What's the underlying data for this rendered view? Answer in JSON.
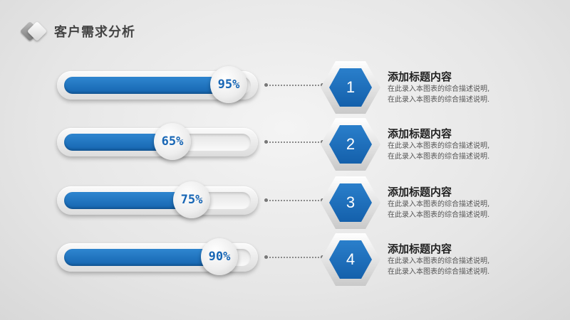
{
  "header": {
    "title": "客户需求分析"
  },
  "items": [
    {
      "percent": "95%",
      "value": 0.95,
      "number": "1",
      "title": "添加标题内容",
      "desc_lines": [
        "在此录入本图表的综合描述说明,",
        "在此录入本图表的综合描述说明."
      ]
    },
    {
      "percent": "65%",
      "value": 0.65,
      "number": "2",
      "title": "添加标题内容",
      "desc_lines": [
        "在此录入本图表的综合描述说明,",
        "在此录入本图表的综合描述说明."
      ]
    },
    {
      "percent": "75%",
      "value": 0.75,
      "number": "3",
      "title": "添加标题内容",
      "desc_lines": [
        "在此录入本图表的综合描述说明,",
        "在此录入本图表的综合描述说明."
      ]
    },
    {
      "percent": "90%",
      "value": 0.9,
      "number": "4",
      "title": "添加标题内容",
      "desc_lines": [
        "在此录入本图表的综合描述说明,",
        "在此录入本图表的综合描述说明."
      ]
    }
  ],
  "colors": {
    "accent": "#1766b5",
    "bar_fill": "#1e6fbf"
  }
}
